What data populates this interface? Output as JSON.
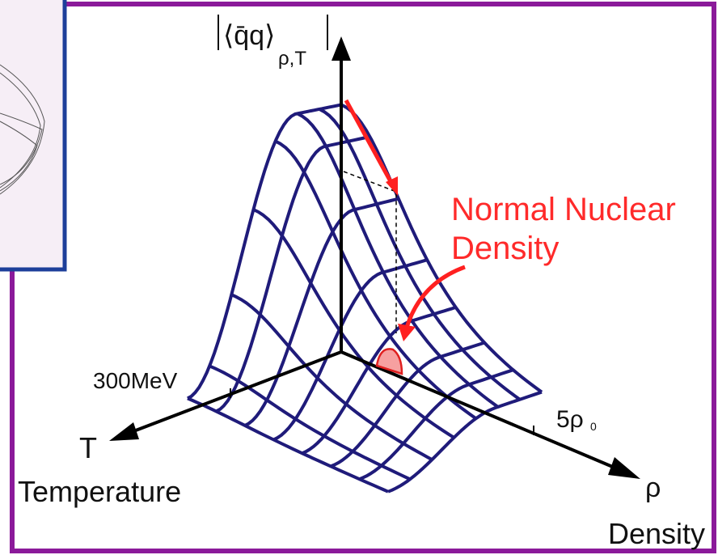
{
  "diagram": {
    "vertical_axis": {
      "label": "⟨q̄q⟩",
      "subscript": "ρ,T"
    },
    "temperature_axis": {
      "tick": "300MeV",
      "symbol": "T",
      "name": "Temperature"
    },
    "density_axis": {
      "tick": "5ρ",
      "tick_subscript": "0",
      "symbol": "ρ",
      "name": "Density"
    },
    "annotation": {
      "lines": [
        "Normal Nuclear",
        "Density"
      ]
    }
  }
}
